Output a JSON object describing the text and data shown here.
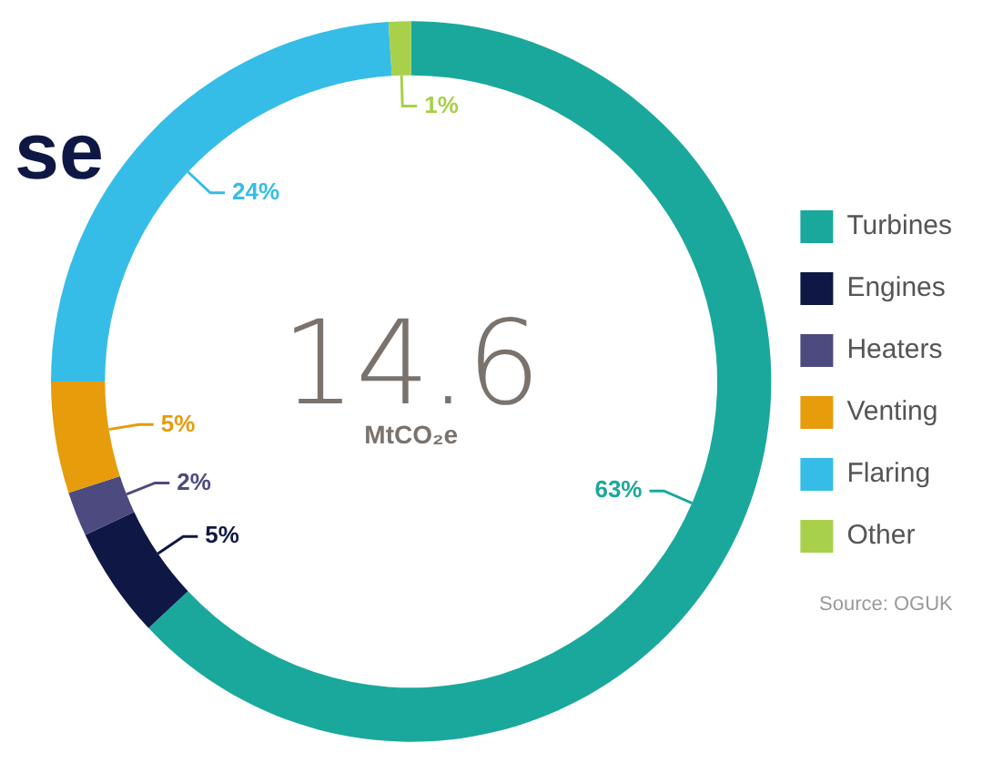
{
  "chart_data": {
    "type": "donut",
    "title": "se",
    "categories": [
      "Turbines",
      "Engines",
      "Heaters",
      "Venting",
      "Flaring",
      "Other"
    ],
    "values": [
      63,
      5,
      2,
      5,
      24,
      1
    ],
    "colors": [
      "#1aa89c",
      "#0f1845",
      "#4d4a80",
      "#e69c0b",
      "#35bde8",
      "#a8d04a"
    ],
    "value_labels": [
      "63%",
      "5%",
      "2%",
      "5%",
      "24%",
      "1%"
    ],
    "legend": "right",
    "annotations": [
      "14.6",
      "MtCO₂e",
      "Source: OGUK"
    ]
  }
}
